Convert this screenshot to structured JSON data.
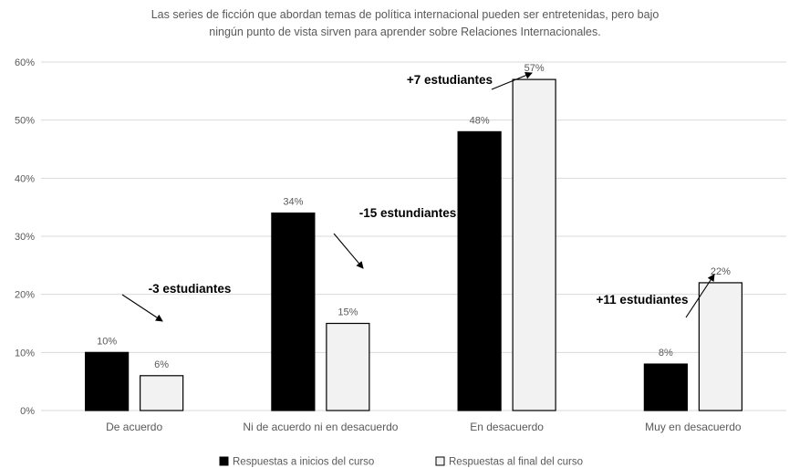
{
  "chart_data": {
    "type": "bar",
    "title": "Las series de ficción que abordan temas de política internacional pueden ser entretenidas, pero bajo ningún punto de vista sirven para aprender sobre Relaciones Internacionales.",
    "title_lines": [
      "Las series de ficción que abordan temas de política internacional pueden ser entretenidas, pero bajo",
      "ningún punto de vista sirven para aprender sobre Relaciones Internacionales."
    ],
    "categories": [
      "De acuerdo",
      "Ni de acuerdo ni en desacuerdo",
      "En desacuerdo",
      "Muy en desacuerdo"
    ],
    "series": [
      {
        "name": "Respuestas a inicios del curso",
        "values": [
          10,
          34,
          48,
          8
        ],
        "labels": [
          "10%",
          "34%",
          "48%",
          "8%"
        ],
        "color": "#000000"
      },
      {
        "name": "Respuestas al final del curso",
        "values": [
          6,
          15,
          57,
          22
        ],
        "labels": [
          "6%",
          "15%",
          "57%",
          "22%"
        ],
        "color": "#f2f2f2"
      }
    ],
    "ylim": [
      0,
      60
    ],
    "yticks": [
      "0%",
      "10%",
      "20%",
      "30%",
      "40%",
      "50%",
      "60%"
    ],
    "grid": true,
    "legend_position": "bottom",
    "annotations": [
      {
        "text": "-3 estudiantes",
        "category": 0,
        "direction": "down"
      },
      {
        "text": "-15 estundiantes",
        "category": 1,
        "direction": "down"
      },
      {
        "text": "+7 estudiantes",
        "category": 2,
        "direction": "up"
      },
      {
        "text": "+11 estudiantes",
        "category": 3,
        "direction": "up"
      }
    ]
  }
}
